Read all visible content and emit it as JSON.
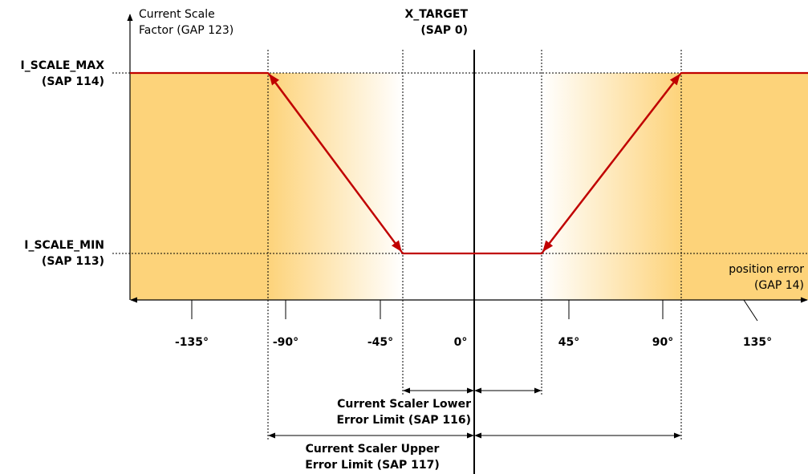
{
  "y_axis": {
    "label_line1": "Current Scale",
    "label_line2": "Factor (GAP 123)"
  },
  "x_axis": {
    "label_line1": "position error",
    "label_line2": "(GAP 14)",
    "ticks": [
      "-135°",
      "-90°",
      "-45°",
      "0°",
      "45°",
      "90°",
      "135°"
    ]
  },
  "levels": {
    "max": {
      "label_line1": "I_SCALE_MAX",
      "label_line2": "(SAP 114)"
    },
    "min": {
      "label_line1": "I_SCALE_MIN",
      "label_line2": "(SAP 113)"
    }
  },
  "target": {
    "label_line1": "X_TARGET",
    "label_line2": "(SAP 0)"
  },
  "lower_limit": {
    "label_line1": "Current Scaler Lower",
    "label_line2": "Error Limit (SAP 116)"
  },
  "upper_limit": {
    "label_line1": "Current Scaler Upper",
    "label_line2": "Error Limit (SAP 117)"
  },
  "colors": {
    "curve": "#c00000",
    "fill": "#fdd37a",
    "fill_fade": "#ffffff",
    "axis": "#000000"
  }
}
